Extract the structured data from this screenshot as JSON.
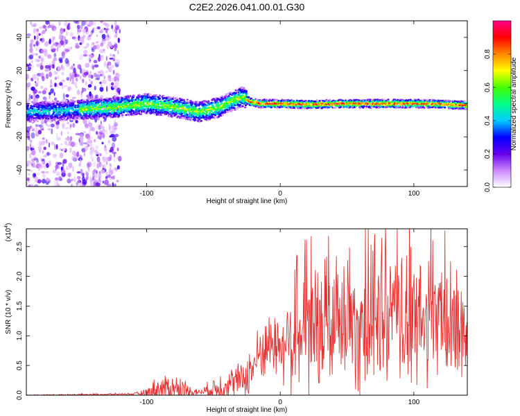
{
  "title": "C2E2.2026.041.00.01.G30",
  "chart_data": [
    {
      "type": "heatmap",
      "xlabel": "Height of straight line (km)",
      "ylabel": "Frequency (Hz)",
      "xlim": [
        -190,
        140
      ],
      "ylim": [
        -50,
        50
      ],
      "x_ticks": [
        -100,
        0,
        100
      ],
      "x_tick_labels": [
        "-100",
        "0",
        "100"
      ],
      "y_ticks": [
        -40,
        -20,
        0,
        20,
        40
      ],
      "y_tick_labels": [
        "-40",
        "-20",
        "0",
        "20",
        "40"
      ],
      "ridge": {
        "x": [
          -190,
          -160,
          -140,
          -120,
          -100,
          -80,
          -60,
          -45,
          -35,
          -28,
          -22,
          -15,
          0,
          20,
          50,
          80,
          110,
          140
        ],
        "freq": [
          -5,
          -4,
          -3,
          -2,
          0,
          -2,
          -5,
          -2,
          2,
          4,
          1,
          0,
          0,
          -0.5,
          0,
          0,
          0,
          -1
        ]
      },
      "noise_band_edge_km": -120,
      "colorbar": {
        "label": "Normalized spectral amplitude",
        "range": [
          0,
          1
        ],
        "ticks": [
          0.0,
          0.2,
          0.4,
          0.6,
          0.8
        ],
        "tick_labels": [
          "0.0",
          "0.2",
          "0.4",
          "0.6",
          "0.8"
        ],
        "colors": [
          "#ffffff",
          "#cc88ff",
          "#6600ee",
          "#0000ff",
          "#00ccff",
          "#00ff88",
          "#44ff00",
          "#ffff00",
          "#ff8800",
          "#ff0000",
          "#ff0088"
        ]
      }
    },
    {
      "type": "line",
      "xlabel": "Height of straight line (km)",
      "ylabel": "SNR (10 * v/v)",
      "y_scale_label": "(x10",
      "y_scale_exp": "4",
      "y_scale_close": ")",
      "xlim": [
        -190,
        140
      ],
      "ylim": [
        0,
        2.8
      ],
      "x_ticks": [
        -100,
        0,
        100
      ],
      "x_tick_labels": [
        "-100",
        "0",
        "100"
      ],
      "y_ticks": [
        0,
        0.5,
        1.0,
        1.5,
        2.0,
        2.5
      ],
      "y_tick_labels": [
        "0.0",
        "0.5",
        "1.0",
        "1.5",
        "2.0",
        "2.5"
      ],
      "color": "#e83030",
      "envelope": {
        "x": [
          -190,
          -140,
          -110,
          -100,
          -95,
          -85,
          -75,
          -65,
          -60,
          -52,
          -45,
          -38,
          -30,
          -22,
          -18,
          -14,
          -10,
          -5,
          0,
          5,
          10,
          15,
          20,
          30,
          40,
          50,
          60,
          70,
          80,
          90,
          100,
          110,
          120,
          130,
          140
        ],
        "base": [
          0.0,
          0.01,
          0.02,
          0.04,
          0.08,
          0.12,
          0.1,
          0.06,
          0.05,
          0.1,
          0.14,
          0.2,
          0.25,
          0.4,
          0.6,
          0.75,
          0.85,
          0.85,
          0.85,
          0.9,
          0.95,
          1.0,
          1.05,
          1.1,
          1.15,
          1.2,
          1.2,
          1.25,
          1.25,
          1.25,
          1.2,
          1.2,
          1.2,
          1.15,
          1.1
        ],
        "amp": [
          0.01,
          0.02,
          0.02,
          0.08,
          0.22,
          0.3,
          0.28,
          0.1,
          0.05,
          0.2,
          0.3,
          0.35,
          0.35,
          0.5,
          0.55,
          0.6,
          0.6,
          0.65,
          0.7,
          0.9,
          1.1,
          1.2,
          1.3,
          1.3,
          1.35,
          1.35,
          1.4,
          1.4,
          1.4,
          1.35,
          1.35,
          1.3,
          1.3,
          1.25,
          1.2
        ]
      }
    }
  ]
}
